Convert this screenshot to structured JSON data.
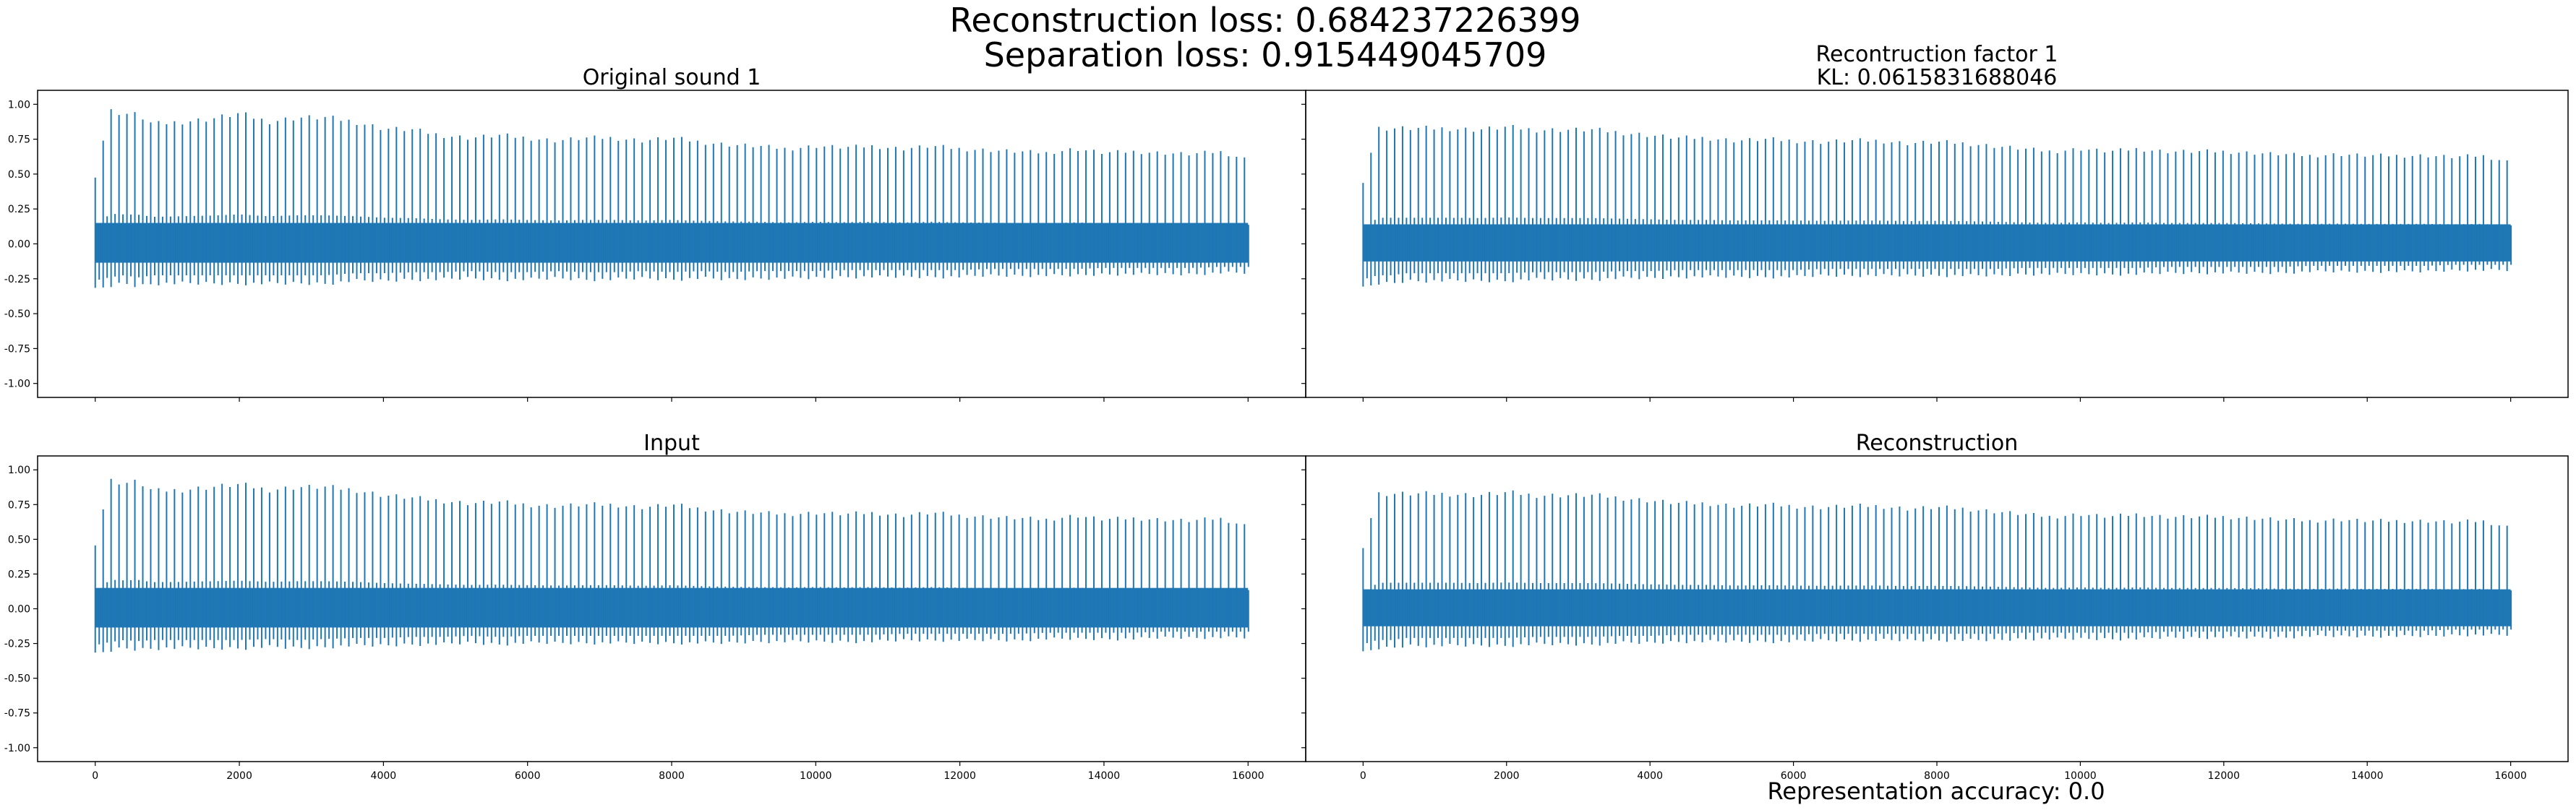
{
  "figure": {
    "suptitle_lines": [
      "Reconstruction loss: 0.684237226399",
      "Separation loss: 0.915449045709"
    ],
    "footer": "Representation accuracy: 0.0"
  },
  "style": {
    "line_color": "#1f77b4",
    "background": "#ffffff",
    "axes_color": "#000000"
  },
  "chart_data": [
    {
      "type": "line",
      "title_lines": [
        "Original sound 1"
      ],
      "xlim": [
        -800,
        16800
      ],
      "ylim": [
        -1.1,
        1.1
      ],
      "xticks": [
        0,
        2000,
        4000,
        6000,
        8000,
        10000,
        12000,
        14000,
        16000
      ],
      "yticks": [
        -1.0,
        -0.75,
        -0.5,
        -0.25,
        0.0,
        0.25,
        0.5,
        0.75,
        1.0
      ],
      "ytick_labels": [
        "-1.00",
        "-0.75",
        "-0.50",
        "-0.25",
        "0.00",
        "0.25",
        "0.50",
        "0.75",
        "1.00"
      ],
      "xtick_labels_shown": false,
      "ytick_labels_shown": true,
      "envelope": {
        "x": [
          0,
          200,
          400,
          600,
          800,
          1200,
          1600,
          2000,
          2400,
          2800,
          3200,
          3600,
          4000,
          4400,
          4800,
          5200,
          5600,
          6000,
          6400,
          6800,
          7200,
          7600,
          8000,
          8400,
          8800,
          9200,
          9600,
          10000,
          10400,
          10800,
          11200,
          11600,
          12000,
          12400,
          12800,
          13200,
          13600,
          14000,
          14400,
          14800,
          15200,
          15600,
          16000
        ],
        "max": [
          0.5,
          0.98,
          0.96,
          0.95,
          0.88,
          0.9,
          0.92,
          0.96,
          0.9,
          0.93,
          0.93,
          0.9,
          0.85,
          0.84,
          0.8,
          0.78,
          0.8,
          0.78,
          0.76,
          0.78,
          0.78,
          0.76,
          0.78,
          0.75,
          0.73,
          0.72,
          0.7,
          0.72,
          0.71,
          0.72,
          0.7,
          0.72,
          0.7,
          0.69,
          0.68,
          0.67,
          0.7,
          0.67,
          0.68,
          0.67,
          0.66,
          0.68,
          0.62
        ],
        "min": [
          -0.35,
          -0.32,
          -0.3,
          -0.32,
          -0.3,
          -0.3,
          -0.3,
          -0.3,
          -0.3,
          -0.3,
          -0.3,
          -0.28,
          -0.28,
          -0.27,
          -0.27,
          -0.26,
          -0.27,
          -0.27,
          -0.26,
          -0.27,
          -0.27,
          -0.26,
          -0.27,
          -0.26,
          -0.27,
          -0.26,
          -0.26,
          -0.26,
          -0.25,
          -0.25,
          -0.25,
          -0.25,
          -0.25,
          -0.24,
          -0.24,
          -0.24,
          -0.24,
          -0.23,
          -0.23,
          -0.23,
          -0.23,
          -0.22,
          -0.22
        ],
        "band": 0.15
      }
    },
    {
      "type": "line",
      "title_lines": [
        "Recontruction factor 1",
        "KL: 0.0615831688046"
      ],
      "xlim": [
        -800,
        16800
      ],
      "ylim": [
        -1.1,
        1.1
      ],
      "xticks": [
        0,
        2000,
        4000,
        6000,
        8000,
        10000,
        12000,
        14000,
        16000
      ],
      "yticks": [
        -1.0,
        -0.75,
        -0.5,
        -0.25,
        0.0,
        0.25,
        0.5,
        0.75,
        1.0
      ],
      "ytick_labels": [],
      "xtick_labels_shown": false,
      "ytick_labels_shown": false,
      "envelope": {
        "x": [
          0,
          200,
          400,
          600,
          800,
          1200,
          1600,
          2000,
          2400,
          2800,
          3200,
          3600,
          4000,
          4400,
          4800,
          5200,
          5600,
          6000,
          6400,
          6800,
          7200,
          7600,
          8000,
          8400,
          8800,
          9200,
          9600,
          10000,
          10400,
          10800,
          11200,
          11600,
          12000,
          12400,
          12800,
          13200,
          13600,
          14000,
          14400,
          14800,
          15200,
          15600,
          16000
        ],
        "max": [
          0.46,
          0.85,
          0.85,
          0.85,
          0.85,
          0.85,
          0.84,
          0.86,
          0.84,
          0.84,
          0.84,
          0.82,
          0.8,
          0.78,
          0.78,
          0.76,
          0.77,
          0.76,
          0.75,
          0.76,
          0.76,
          0.74,
          0.75,
          0.74,
          0.72,
          0.7,
          0.68,
          0.7,
          0.68,
          0.7,
          0.68,
          0.68,
          0.68,
          0.67,
          0.66,
          0.65,
          0.66,
          0.65,
          0.65,
          0.65,
          0.64,
          0.65,
          0.6
        ],
        "min": [
          -0.34,
          -0.3,
          -0.3,
          -0.28,
          -0.28,
          -0.28,
          -0.28,
          -0.28,
          -0.27,
          -0.27,
          -0.27,
          -0.26,
          -0.26,
          -0.25,
          -0.25,
          -0.25,
          -0.25,
          -0.25,
          -0.24,
          -0.24,
          -0.24,
          -0.24,
          -0.24,
          -0.24,
          -0.24,
          -0.23,
          -0.23,
          -0.23,
          -0.23,
          -0.23,
          -0.22,
          -0.22,
          -0.22,
          -0.22,
          -0.22,
          -0.21,
          -0.21,
          -0.21,
          -0.21,
          -0.21,
          -0.2,
          -0.2,
          -0.2
        ],
        "band": 0.14
      }
    },
    {
      "type": "line",
      "title_lines": [
        "Input"
      ],
      "xlim": [
        -800,
        16800
      ],
      "ylim": [
        -1.1,
        1.1
      ],
      "xticks": [
        0,
        2000,
        4000,
        6000,
        8000,
        10000,
        12000,
        14000,
        16000
      ],
      "xtick_labels": [
        "0",
        "2000",
        "4000",
        "6000",
        "8000",
        "10000",
        "12000",
        "14000",
        "16000"
      ],
      "yticks": [
        -1.0,
        -0.75,
        -0.5,
        -0.25,
        0.0,
        0.25,
        0.5,
        0.75,
        1.0
      ],
      "ytick_labels": [
        "-1.00",
        "-0.75",
        "-0.50",
        "-0.25",
        "0.00",
        "0.25",
        "0.50",
        "0.75",
        "1.00"
      ],
      "xtick_labels_shown": true,
      "ytick_labels_shown": true,
      "envelope": {
        "x": [
          0,
          200,
          400,
          600,
          800,
          1200,
          1600,
          2000,
          2400,
          2800,
          3200,
          3600,
          4000,
          4400,
          4800,
          5200,
          5600,
          6000,
          6400,
          6800,
          7200,
          7600,
          8000,
          8400,
          8800,
          9200,
          9600,
          10000,
          10400,
          10800,
          11200,
          11600,
          12000,
          12400,
          12800,
          13200,
          13600,
          14000,
          14400,
          14800,
          15200,
          15600,
          16000
        ],
        "max": [
          0.48,
          0.95,
          0.93,
          0.94,
          0.87,
          0.88,
          0.9,
          0.92,
          0.88,
          0.9,
          0.9,
          0.88,
          0.84,
          0.82,
          0.8,
          0.78,
          0.79,
          0.77,
          0.76,
          0.77,
          0.77,
          0.75,
          0.77,
          0.74,
          0.72,
          0.71,
          0.7,
          0.71,
          0.7,
          0.71,
          0.69,
          0.71,
          0.69,
          0.68,
          0.67,
          0.66,
          0.69,
          0.66,
          0.67,
          0.66,
          0.65,
          0.67,
          0.61
        ],
        "min": [
          -0.35,
          -0.32,
          -0.3,
          -0.31,
          -0.3,
          -0.3,
          -0.3,
          -0.3,
          -0.29,
          -0.3,
          -0.29,
          -0.28,
          -0.28,
          -0.27,
          -0.27,
          -0.26,
          -0.27,
          -0.26,
          -0.26,
          -0.26,
          -0.26,
          -0.26,
          -0.26,
          -0.26,
          -0.26,
          -0.25,
          -0.25,
          -0.25,
          -0.25,
          -0.25,
          -0.24,
          -0.24,
          -0.24,
          -0.24,
          -0.24,
          -0.23,
          -0.23,
          -0.23,
          -0.23,
          -0.22,
          -0.22,
          -0.22,
          -0.22
        ],
        "band": 0.15
      }
    },
    {
      "type": "line",
      "title_lines": [
        "Reconstruction"
      ],
      "xlim": [
        -800,
        16800
      ],
      "ylim": [
        -1.1,
        1.1
      ],
      "xticks": [
        0,
        2000,
        4000,
        6000,
        8000,
        10000,
        12000,
        14000,
        16000
      ],
      "xtick_labels": [
        "0",
        "2000",
        "4000",
        "6000",
        "8000",
        "10000",
        "12000",
        "14000",
        "16000"
      ],
      "yticks": [
        -1.0,
        -0.75,
        -0.5,
        -0.25,
        0.0,
        0.25,
        0.5,
        0.75,
        1.0
      ],
      "ytick_labels": [],
      "xtick_labels_shown": true,
      "ytick_labels_shown": false,
      "envelope": {
        "x": [
          0,
          200,
          400,
          600,
          800,
          1200,
          1600,
          2000,
          2400,
          2800,
          3200,
          3600,
          4000,
          4400,
          4800,
          5200,
          5600,
          6000,
          6400,
          6800,
          7200,
          7600,
          8000,
          8400,
          8800,
          9200,
          9600,
          10000,
          10400,
          10800,
          11200,
          11600,
          12000,
          12400,
          12800,
          13200,
          13600,
          14000,
          14400,
          14800,
          15200,
          15600,
          16000
        ],
        "max": [
          0.46,
          0.85,
          0.85,
          0.85,
          0.85,
          0.85,
          0.84,
          0.86,
          0.84,
          0.84,
          0.84,
          0.82,
          0.8,
          0.78,
          0.78,
          0.76,
          0.77,
          0.76,
          0.75,
          0.76,
          0.76,
          0.74,
          0.75,
          0.74,
          0.72,
          0.7,
          0.68,
          0.7,
          0.68,
          0.7,
          0.68,
          0.68,
          0.68,
          0.67,
          0.66,
          0.65,
          0.66,
          0.65,
          0.65,
          0.65,
          0.64,
          0.65,
          0.6
        ],
        "min": [
          -0.34,
          -0.3,
          -0.3,
          -0.28,
          -0.28,
          -0.28,
          -0.28,
          -0.28,
          -0.27,
          -0.27,
          -0.27,
          -0.26,
          -0.26,
          -0.25,
          -0.25,
          -0.25,
          -0.25,
          -0.25,
          -0.24,
          -0.24,
          -0.24,
          -0.24,
          -0.24,
          -0.24,
          -0.24,
          -0.23,
          -0.23,
          -0.23,
          -0.23,
          -0.23,
          -0.22,
          -0.22,
          -0.22,
          -0.22,
          -0.22,
          -0.21,
          -0.21,
          -0.21,
          -0.21,
          -0.21,
          -0.2,
          -0.2,
          -0.2
        ],
        "band": 0.14
      }
    }
  ]
}
